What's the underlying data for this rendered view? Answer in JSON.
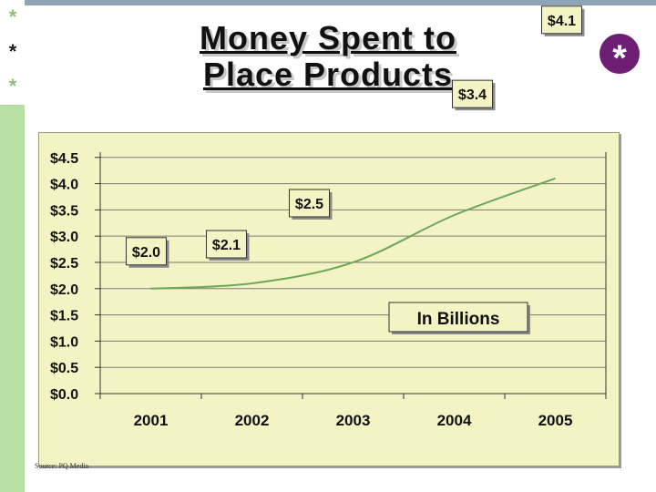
{
  "slide": {
    "title_line1": "Money Spent to",
    "title_line2": "Place Products",
    "side_stars": [
      "*",
      "*",
      "*"
    ],
    "badge_symbol": "*",
    "source": "Source: PQ Media",
    "colors": {
      "plot_bg": "#f4f3c4",
      "line": "#6aa85a",
      "badge": "#6e1f74",
      "strip": "#b7dfa3"
    }
  },
  "chart_data": {
    "type": "line",
    "title": "",
    "xlabel": "",
    "ylabel": "",
    "categories": [
      "2001",
      "2002",
      "2003",
      "2004",
      "2005"
    ],
    "series": [
      {
        "values": [
          2.0,
          2.1,
          2.5,
          3.4,
          4.1
        ]
      }
    ],
    "data_labels": [
      "$2.0",
      "$2.1",
      "$2.5",
      "$3.4",
      "$4.1"
    ],
    "yticks": [
      0.0,
      0.5,
      1.0,
      1.5,
      2.0,
      2.5,
      3.0,
      3.5,
      4.0,
      4.5
    ],
    "ytick_labels": [
      "$0.0",
      "$0.5",
      "$1.0",
      "$1.5",
      "$2.0",
      "$2.5",
      "$3.0",
      "$3.5",
      "$4.0",
      "$4.5"
    ],
    "ylim": [
      0,
      4.6
    ],
    "annotation": "In Billions",
    "grid": "horizontal"
  }
}
